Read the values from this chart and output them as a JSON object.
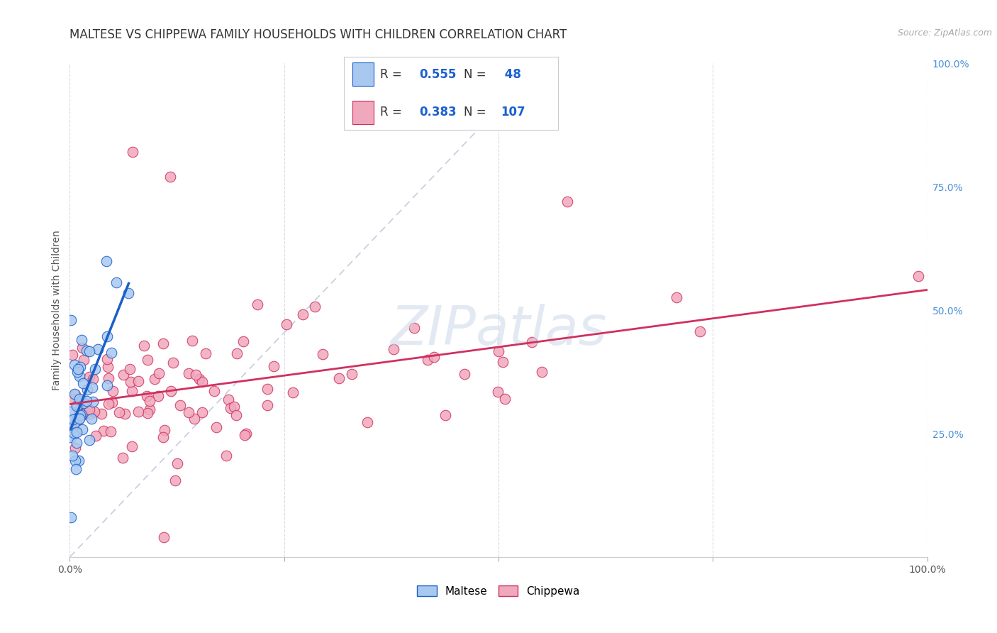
{
  "title": "MALTESE VS CHIPPEWA FAMILY HOUSEHOLDS WITH CHILDREN CORRELATION CHART",
  "source": "Source: ZipAtlas.com",
  "ylabel": "Family Households with Children",
  "xlim": [
    0,
    1.0
  ],
  "ylim": [
    0,
    1.0
  ],
  "maltese_scatter_color": "#a8c8f0",
  "maltese_line_color": "#1a5fc8",
  "chippewa_scatter_color": "#f0a8bc",
  "chippewa_line_color": "#d03060",
  "diagonal_color": "#c0c8d8",
  "watermark_color": "#c8d8e8",
  "legend_R_color": "#1a60d0",
  "R_maltese": 0.555,
  "N_maltese": 48,
  "R_chippewa": 0.383,
  "N_chippewa": 107,
  "background_color": "#ffffff",
  "grid_color": "#d8d8e8",
  "title_fontsize": 12,
  "axis_label_fontsize": 10,
  "tick_fontsize": 10,
  "right_tick_color": "#4a90d9"
}
